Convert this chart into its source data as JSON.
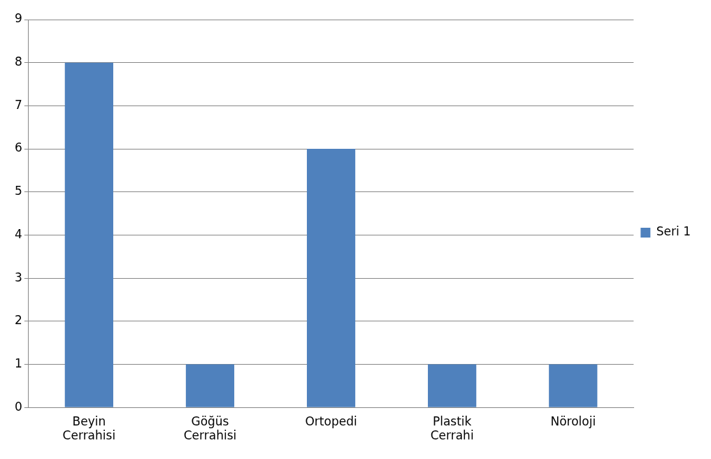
{
  "chart_data": {
    "type": "bar",
    "categories": [
      "Beyin Cerrahisi",
      "Göğüs Cerrahisi",
      "Ortopedi",
      "Plastik Cerrahi",
      "Nöroloji"
    ],
    "series": [
      {
        "name": "Seri 1",
        "color": "#4f81bd",
        "values": [
          8,
          1,
          6,
          1,
          1
        ]
      }
    ],
    "ylim": [
      0,
      9
    ],
    "yticks": [
      0,
      1,
      2,
      3,
      4,
      5,
      6,
      7,
      8,
      9
    ],
    "grid": "y",
    "legend": "right"
  }
}
